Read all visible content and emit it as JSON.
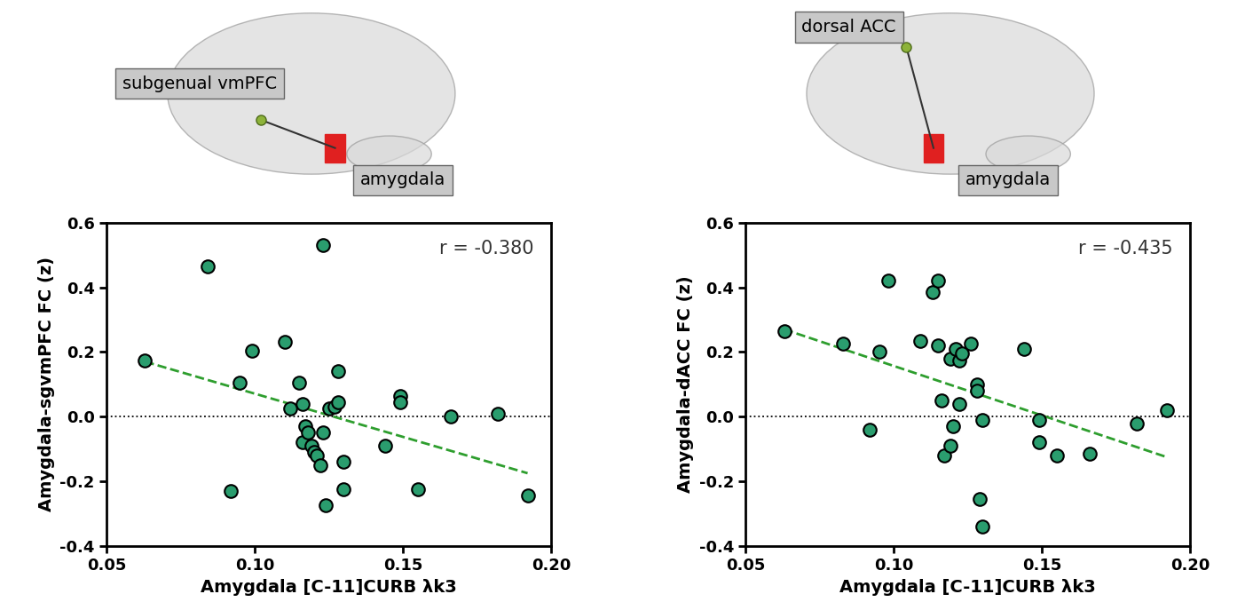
{
  "chart_data": [
    {
      "type": "scatter",
      "regions": {
        "source": "subgenual vmPFC",
        "target": "amygdala"
      },
      "annotation": "r = -0.380",
      "x_label": "Amygdala [C-11]CURB λk3",
      "y_label": "Amygdala-sgvmPFC FC (z)",
      "color": "#2a9d6e",
      "marker": "circle",
      "x": [
        0.063,
        0.084,
        0.092,
        0.095,
        0.099,
        0.11,
        0.112,
        0.115,
        0.116,
        0.116,
        0.117,
        0.118,
        0.119,
        0.12,
        0.121,
        0.122,
        0.123,
        0.123,
        0.124,
        0.125,
        0.127,
        0.128,
        0.128,
        0.13,
        0.13,
        0.144,
        0.149,
        0.149,
        0.155,
        0.166,
        0.182,
        0.192
      ],
      "y": [
        0.175,
        0.465,
        -0.23,
        0.105,
        0.205,
        0.23,
        0.025,
        0.105,
        0.04,
        -0.08,
        -0.03,
        -0.05,
        -0.09,
        -0.11,
        -0.12,
        -0.15,
        -0.05,
        0.53,
        -0.275,
        0.025,
        0.03,
        0.14,
        0.045,
        -0.14,
        -0.225,
        -0.09,
        0.065,
        0.045,
        -0.225,
        0.0,
        0.01,
        -0.245
      ],
      "fit_line": {
        "x": [
          0.063,
          0.192
        ],
        "y": [
          0.17,
          -0.175
        ],
        "color": "#2e9e2e",
        "line_style": "dashed"
      },
      "reference_line": {
        "y": 0.0,
        "color": "#000000",
        "line_style": "dotted"
      },
      "xlim": [
        0.05,
        0.2
      ],
      "xticks": [
        0.05,
        {
          "value": 0.1,
          "label": "0.10"
        },
        0.15,
        {
          "value": 0.2,
          "label": "0.20"
        }
      ],
      "ylim": [
        -0.4,
        0.6
      ],
      "yticks": [
        -0.4,
        -0.2,
        0.0,
        0.2,
        0.4,
        0.6
      ]
    },
    {
      "type": "scatter",
      "regions": {
        "source": "dorsal ACC",
        "target": "amygdala"
      },
      "annotation": "r = -0.435",
      "x_label": "Amygdala [C-11]CURB λk3",
      "y_label": "Amygdala-dACC FC (z)",
      "color": "#2a9d6e",
      "marker": "circle",
      "x": [
        0.063,
        0.083,
        0.092,
        0.095,
        0.098,
        0.109,
        0.113,
        0.115,
        0.115,
        0.116,
        0.117,
        0.119,
        0.119,
        0.12,
        0.121,
        0.122,
        0.122,
        0.123,
        0.126,
        0.128,
        0.128,
        0.129,
        0.13,
        0.13,
        0.144,
        0.149,
        0.149,
        0.155,
        0.166,
        0.182,
        0.192
      ],
      "y": [
        0.265,
        0.225,
        -0.04,
        0.2,
        0.42,
        0.235,
        0.385,
        0.42,
        0.22,
        0.05,
        -0.12,
        0.18,
        -0.09,
        -0.03,
        0.21,
        0.04,
        0.175,
        0.195,
        0.225,
        0.1,
        0.08,
        -0.255,
        -0.01,
        -0.34,
        0.21,
        -0.01,
        -0.08,
        -0.12,
        -0.115,
        -0.02,
        0.02
      ],
      "fit_line": {
        "x": [
          0.063,
          0.192
        ],
        "y": [
          0.27,
          -0.125
        ],
        "color": "#2e9e2e",
        "line_style": "dashed"
      },
      "reference_line": {
        "y": 0.0,
        "color": "#000000",
        "line_style": "dotted"
      },
      "xlim": [
        0.05,
        0.2
      ],
      "xticks": [
        0.05,
        {
          "value": 0.1,
          "label": "0.10"
        },
        0.15,
        {
          "value": 0.2,
          "label": "0.20"
        }
      ],
      "ylim": [
        -0.4,
        0.6
      ],
      "yticks": [
        -0.4,
        -0.2,
        0.0,
        0.2,
        0.4,
        0.6
      ]
    }
  ]
}
